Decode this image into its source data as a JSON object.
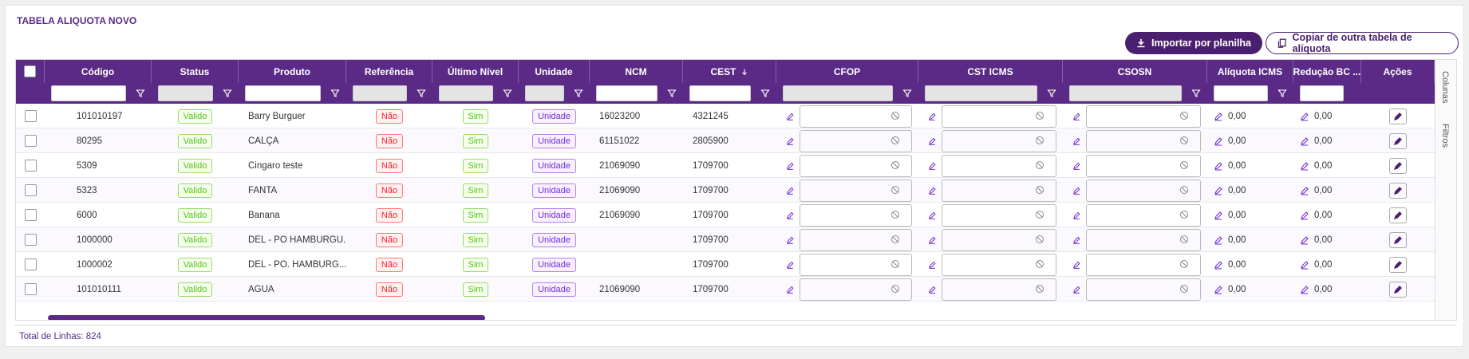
{
  "header": {
    "title": "TABELA ALIQUOTA NOVO"
  },
  "buttons": [
    "Importar por planilha",
    "Copiar de outra tabela de alíquota"
  ],
  "table": {
    "columns": [
      "Código",
      "Status",
      "Produto",
      "Referência",
      "Último Nível",
      "Unidade",
      "NCM",
      "CEST",
      "CFOP",
      "CST ICMS",
      "CSOSN",
      "Alíquota ICMS",
      "Redução BC ...",
      "Ações"
    ],
    "rows": [
      {
        "codigo": "101010197",
        "status": "Valido",
        "produto": "Barry Burguer",
        "referencia": "Não",
        "ultimo_nivel": "Sim",
        "unidade": "Unidade",
        "ncm": "16023200",
        "cest": "4321245",
        "aliquota_icms": "0,00",
        "reducao_bc": "0,00"
      },
      {
        "codigo": "80295",
        "status": "Valido",
        "produto": "CALÇA",
        "referencia": "Não",
        "ultimo_nivel": "Sim",
        "unidade": "Unidade",
        "ncm": "61151022",
        "cest": "2805900",
        "aliquota_icms": "0,00",
        "reducao_bc": "0,00"
      },
      {
        "codigo": "5309",
        "status": "Valido",
        "produto": "Cingaro teste",
        "referencia": "Não",
        "ultimo_nivel": "Sim",
        "unidade": "Unidade",
        "ncm": "21069090",
        "cest": "1709700",
        "aliquota_icms": "0,00",
        "reducao_bc": "0,00"
      },
      {
        "codigo": "5323",
        "status": "Valido",
        "produto": "FANTA",
        "referencia": "Não",
        "ultimo_nivel": "Sim",
        "unidade": "Unidade",
        "ncm": "21069090",
        "cest": "1709700",
        "aliquota_icms": "0,00",
        "reducao_bc": "0,00"
      },
      {
        "codigo": "6000",
        "status": "Valido",
        "produto": "Banana",
        "referencia": "Não",
        "ultimo_nivel": "Sim",
        "unidade": "Unidade",
        "ncm": "21069090",
        "cest": "1709700",
        "aliquota_icms": "0,00",
        "reducao_bc": "0,00"
      },
      {
        "codigo": "1000000",
        "status": "Valido",
        "produto": "DEL - PO HAMBURGU...",
        "referencia": "Não",
        "ultimo_nivel": "Sim",
        "unidade": "Unidade",
        "cest": "1709700",
        "aliquota_icms": "0,00",
        "reducao_bc": "0,00"
      },
      {
        "codigo": "1000002",
        "status": "Valido",
        "produto": "DEL - PO. HAMBURG...",
        "referencia": "Não",
        "ultimo_nivel": "Sim",
        "unidade": "Unidade",
        "cest": "1709700",
        "aliquota_icms": "0,00",
        "reducao_bc": "0,00"
      },
      {
        "codigo": "101010111",
        "status": "Valido",
        "produto": "AGUA",
        "referencia": "Não",
        "ultimo_nivel": "Sim",
        "unidade": "Unidade",
        "ncm": "21069090",
        "cest": "1709700",
        "aliquota_icms": "0,00",
        "reducao_bc": "0,00"
      }
    ]
  },
  "side_panel": [
    "Colunas",
    "Filtros"
  ],
  "footer": {
    "label": "Total de Linhas: 824"
  }
}
